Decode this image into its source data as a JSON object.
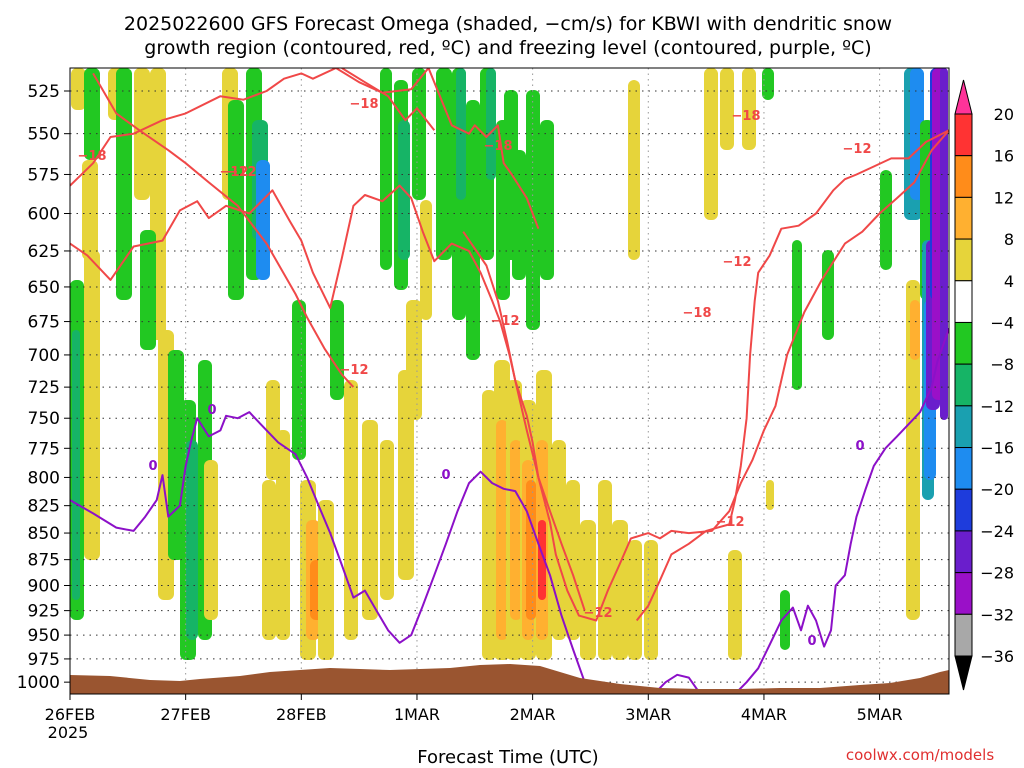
{
  "header": {
    "title_line1": "2025022600 GFS Forecast Omega (shaded, −cm/s) for KBWI with dendritic snow",
    "title_line2": "growth region (contoured, red, ºC) and freezing level (contoured, purple, ºC)"
  },
  "footer": {
    "xlabel": "Forecast Time (UTC)",
    "credit": "coolwx.com/models"
  },
  "chart_data": {
    "type": "heatmap",
    "y_axis": {
      "ticks": [
        "525",
        "550",
        "575",
        "600",
        "625",
        "650",
        "675",
        "700",
        "725",
        "750",
        "775",
        "800",
        "825",
        "850",
        "875",
        "900",
        "925",
        "950",
        "975",
        "1000"
      ],
      "range_hpa": [
        1013,
        512
      ],
      "scale": "log-pressure"
    },
    "x_axis": {
      "ticks": [
        "26FEB",
        "27FEB",
        "28FEB",
        "1MAR",
        "2MAR",
        "3MAR",
        "4MAR",
        "5MAR"
      ],
      "sublabel": "2025",
      "range_days": [
        0,
        7.6
      ]
    },
    "colorbar": {
      "levels": [
        "20",
        "16",
        "12",
        "8",
        "4",
        "−4",
        "−8",
        "−12",
        "−16",
        "−20",
        "−24",
        "−28",
        "−32",
        "−36"
      ],
      "colors": [
        "#ff3399",
        "#ff3333",
        "#ff8c1a",
        "#ffb030",
        "#e6d43a",
        "#ffffff",
        "#22c822",
        "#16b466",
        "#1aa0b0",
        "#1e8cf0",
        "#1e3cdc",
        "#6a1ecc",
        "#9a10c8",
        "#a8a8a8",
        "#000000"
      ]
    },
    "contour_labels": {
      "red": [
        "−18",
        "−18",
        "−12",
        "−12",
        "−18",
        "−12",
        "−18",
        "−12",
        "−12",
        "−18",
        "−12",
        "−12",
        "−12"
      ],
      "purple": [
        "0",
        "0",
        "0",
        "0",
        "0"
      ]
    },
    "series": [
      {
        "name": "upper -18 contour",
        "color": "#f04848",
        "points": [
          [
            0,
            582
          ],
          [
            0.2,
            568
          ],
          [
            0.35,
            552
          ],
          [
            0.55,
            550
          ],
          [
            0.8,
            542
          ],
          [
            1.0,
            538
          ],
          [
            1.3,
            528
          ],
          [
            1.5,
            530
          ],
          [
            1.7,
            525
          ],
          [
            1.85,
            518
          ],
          [
            2.0,
            515
          ],
          [
            2.1,
            518
          ],
          [
            2.3,
            512
          ],
          [
            2.5,
            520
          ],
          [
            2.7,
            526
          ],
          [
            2.95,
            524
          ],
          [
            3.1,
            512
          ],
          [
            3.3,
            545
          ],
          [
            3.45,
            550
          ],
          [
            3.5,
            545
          ],
          [
            3.6,
            552
          ],
          [
            3.7,
            545
          ],
          [
            3.75,
            568
          ],
          [
            3.82,
            575
          ],
          [
            3.95,
            590
          ],
          [
            4.05,
            610
          ]
        ]
      },
      {
        "name": "second -18 contour",
        "color": "#f04848",
        "points": [
          [
            2.35,
            512
          ],
          [
            2.55,
            520
          ],
          [
            2.75,
            528
          ],
          [
            2.9,
            542
          ],
          [
            3.0,
            535
          ],
          [
            3.15,
            548
          ]
        ]
      },
      {
        "name": "lower -12 / -18 boundary",
        "color": "#f04848",
        "points": [
          [
            0,
            620
          ],
          [
            0.15,
            628
          ],
          [
            0.35,
            645
          ],
          [
            0.55,
            622
          ],
          [
            0.8,
            618
          ],
          [
            0.95,
            598
          ],
          [
            1.1,
            592
          ],
          [
            1.2,
            603
          ],
          [
            1.35,
            595
          ],
          [
            1.55,
            600
          ],
          [
            1.75,
            585
          ],
          [
            1.9,
            605
          ],
          [
            2.0,
            618
          ],
          [
            2.1,
            640
          ],
          [
            2.25,
            665
          ],
          [
            2.35,
            630
          ],
          [
            2.45,
            595
          ],
          [
            2.55,
            588
          ],
          [
            2.7,
            592
          ],
          [
            2.85,
            582
          ],
          [
            2.95,
            590
          ],
          [
            3.05,
            612
          ],
          [
            3.15,
            632
          ],
          [
            3.3,
            620
          ],
          [
            3.45,
            625
          ],
          [
            3.55,
            640
          ],
          [
            3.65,
            660
          ],
          [
            3.72,
            675
          ],
          [
            3.8,
            700
          ],
          [
            3.85,
            720
          ],
          [
            3.95,
            760
          ],
          [
            4.05,
            800
          ],
          [
            4.15,
            840
          ],
          [
            4.2,
            870
          ],
          [
            4.3,
            905
          ],
          [
            4.4,
            930
          ],
          [
            4.55,
            935
          ],
          [
            4.65,
            905
          ],
          [
            4.75,
            880
          ],
          [
            4.85,
            855
          ],
          [
            5.0,
            850
          ],
          [
            5.1,
            855
          ],
          [
            5.2,
            848
          ],
          [
            5.35,
            850
          ],
          [
            5.55,
            848
          ],
          [
            5.7,
            830
          ],
          [
            5.8,
            805
          ],
          [
            5.9,
            785
          ],
          [
            6.0,
            760
          ],
          [
            6.1,
            740
          ],
          [
            6.2,
            700
          ],
          [
            6.35,
            668
          ],
          [
            6.5,
            645
          ],
          [
            6.7,
            620
          ],
          [
            6.85,
            612
          ],
          [
            7.0,
            600
          ],
          [
            7.15,
            590
          ],
          [
            7.3,
            580
          ],
          [
            7.45,
            560
          ],
          [
            7.6,
            548
          ]
        ]
      },
      {
        "name": "-12 lower contour",
        "color": "#f04848",
        "points": [
          [
            0.2,
            515
          ],
          [
            0.4,
            538
          ],
          [
            0.6,
            548
          ],
          [
            0.85,
            560
          ],
          [
            1.0,
            568
          ],
          [
            1.2,
            580
          ],
          [
            1.45,
            595
          ],
          [
            1.7,
            620
          ],
          [
            1.95,
            655
          ],
          [
            2.05,
            672
          ],
          [
            2.2,
            695
          ],
          [
            2.35,
            715
          ],
          [
            2.45,
            725
          ]
        ]
      },
      {
        "name": "-12 middle contour",
        "color": "#f04848",
        "points": [
          [
            3.4,
            612
          ],
          [
            3.6,
            635
          ],
          [
            3.7,
            660
          ],
          [
            3.78,
            690
          ],
          [
            3.85,
            720
          ],
          [
            3.95,
            748
          ],
          [
            4.0,
            770
          ],
          [
            4.05,
            800
          ],
          [
            4.15,
            830
          ],
          [
            4.25,
            860
          ],
          [
            4.35,
            890
          ],
          [
            4.45,
            925
          ]
        ]
      },
      {
        "name": "-12 east contour",
        "color": "#f04848",
        "points": [
          [
            4.9,
            935
          ],
          [
            5.0,
            920
          ],
          [
            5.1,
            895
          ],
          [
            5.2,
            870
          ],
          [
            5.35,
            860
          ],
          [
            5.5,
            848
          ],
          [
            5.6,
            845
          ],
          [
            5.7,
            842
          ],
          [
            5.75,
            820
          ],
          [
            5.8,
            790
          ],
          [
            5.85,
            750
          ],
          [
            5.88,
            700
          ],
          [
            5.92,
            660
          ],
          [
            5.95,
            640
          ],
          [
            6.05,
            628
          ],
          [
            6.15,
            610
          ],
          [
            6.3,
            608
          ],
          [
            6.45,
            600
          ],
          [
            6.6,
            585
          ],
          [
            6.7,
            578
          ],
          [
            6.8,
            575
          ],
          [
            6.95,
            570
          ],
          [
            7.1,
            565
          ],
          [
            7.25,
            565
          ],
          [
            7.4,
            555
          ],
          [
            7.6,
            548
          ]
        ]
      },
      {
        "name": "0 freezing level",
        "color": "#8c10c8",
        "points": [
          [
            0,
            820
          ],
          [
            0.2,
            832
          ],
          [
            0.4,
            845
          ],
          [
            0.55,
            848
          ],
          [
            0.65,
            835
          ],
          [
            0.75,
            820
          ],
          [
            0.8,
            798
          ],
          [
            0.85,
            835
          ],
          [
            0.95,
            825
          ],
          [
            1.0,
            790
          ],
          [
            1.05,
            768
          ],
          [
            1.1,
            750
          ],
          [
            1.2,
            765
          ],
          [
            1.3,
            760
          ],
          [
            1.35,
            748
          ],
          [
            1.45,
            750
          ],
          [
            1.55,
            745
          ],
          [
            1.65,
            755
          ],
          [
            1.8,
            770
          ],
          [
            1.95,
            780
          ],
          [
            2.05,
            800
          ],
          [
            2.15,
            825
          ],
          [
            2.25,
            850
          ],
          [
            2.35,
            880
          ],
          [
            2.45,
            912
          ],
          [
            2.55,
            905
          ],
          [
            2.65,
            925
          ],
          [
            2.75,
            945
          ],
          [
            2.85,
            958
          ],
          [
            2.95,
            950
          ],
          [
            3.05,
            920
          ],
          [
            3.15,
            890
          ],
          [
            3.25,
            860
          ],
          [
            3.35,
            830
          ],
          [
            3.45,
            805
          ],
          [
            3.55,
            795
          ],
          [
            3.65,
            805
          ],
          [
            3.75,
            810
          ],
          [
            3.85,
            812
          ],
          [
            3.95,
            830
          ],
          [
            4.05,
            860
          ],
          [
            4.15,
            890
          ],
          [
            4.25,
            930
          ],
          [
            4.35,
            965
          ],
          [
            4.45,
            1000
          ],
          [
            4.5,
            1013
          ]
        ]
      },
      {
        "name": "0 freezing level east",
        "color": "#8c10c8",
        "points": [
          [
            5.05,
            1013
          ],
          [
            5.15,
            1000
          ],
          [
            5.25,
            992
          ],
          [
            5.35,
            995
          ],
          [
            5.45,
            1013
          ]
        ]
      },
      {
        "name": "0 freezing level far east",
        "color": "#8c10c8",
        "points": [
          [
            5.75,
            1013
          ],
          [
            5.85,
            1000
          ],
          [
            5.95,
            985
          ],
          [
            6.05,
            960
          ],
          [
            6.15,
            935
          ],
          [
            6.25,
            922
          ],
          [
            6.32,
            945
          ],
          [
            6.38,
            920
          ],
          [
            6.45,
            935
          ],
          [
            6.52,
            962
          ],
          [
            6.58,
            945
          ],
          [
            6.62,
            900
          ],
          [
            6.7,
            890
          ],
          [
            6.75,
            860
          ],
          [
            6.8,
            835
          ],
          [
            6.88,
            810
          ],
          [
            6.95,
            790
          ],
          [
            7.05,
            775
          ],
          [
            7.15,
            765
          ],
          [
            7.25,
            755
          ],
          [
            7.35,
            745
          ],
          [
            7.45,
            725
          ],
          [
            7.5,
            705
          ],
          [
            7.6,
            680
          ]
        ]
      }
    ]
  }
}
